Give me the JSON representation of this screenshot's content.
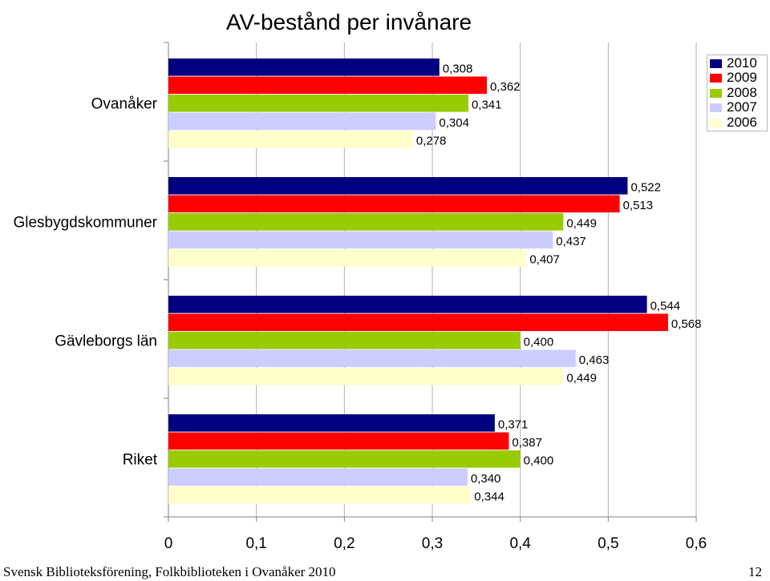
{
  "chart_data": {
    "type": "bar",
    "orientation": "horizontal",
    "title": "AV-bestånd per invånare",
    "categories": [
      "Ovanåker",
      "Glesbygdskommuner",
      "Gävleborgs län",
      "Riket"
    ],
    "series": [
      {
        "name": "2010",
        "color": "#000080",
        "values": [
          0.308,
          0.522,
          0.544,
          0.371
        ],
        "labels": [
          "0,308",
          "0,522",
          "0,544",
          "0,371"
        ]
      },
      {
        "name": "2009",
        "color": "#ff0000",
        "values": [
          0.362,
          0.513,
          0.568,
          0.387
        ],
        "labels": [
          "0,362",
          "0,513",
          "0,568",
          "0,387"
        ]
      },
      {
        "name": "2008",
        "color": "#99cc00",
        "values": [
          0.341,
          0.449,
          0.4,
          0.4
        ],
        "labels": [
          "0,341",
          "0,449",
          "0,400",
          "0,400"
        ]
      },
      {
        "name": "2007",
        "color": "#ccccff",
        "values": [
          0.304,
          0.437,
          0.463,
          0.34
        ],
        "labels": [
          "0,304",
          "0,437",
          "0,463",
          "0,340"
        ]
      },
      {
        "name": "2006",
        "color": "#ffffcc",
        "values": [
          0.278,
          0.407,
          0.449,
          0.344
        ],
        "labels": [
          "0,278",
          "0,407",
          "0,449",
          "0,344"
        ]
      }
    ],
    "xlim": [
      0,
      0.6
    ],
    "x_ticks": [
      0,
      0.1,
      0.2,
      0.3,
      0.4,
      0.5,
      0.6
    ],
    "x_tick_labels": [
      "0",
      "0,1",
      "0,2",
      "0,3",
      "0,4",
      "0,5",
      "0,6"
    ],
    "grid": true,
    "legend_position": "top-right"
  },
  "footer": {
    "left": "Svensk Biblioteksförening, Folkbiblioteken i Ovanåker 2010",
    "right": "12"
  }
}
